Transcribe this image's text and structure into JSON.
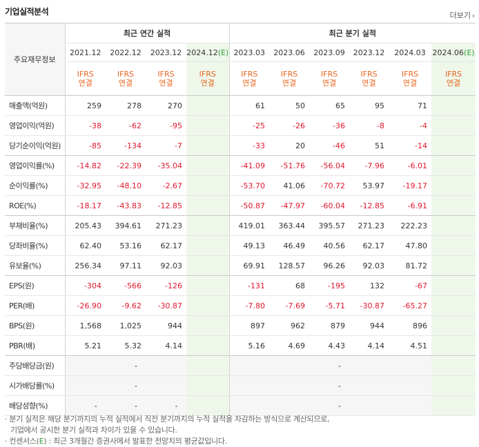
{
  "section_title": "기업실적분석",
  "more_label": "더보기",
  "header": {
    "corner_label": "주요재무정보",
    "annual_label": "최근 연간 실적",
    "quarter_label": "최근 분기 실적",
    "annual_periods": [
      "2021.12",
      "2022.12",
      "2023.12",
      "2024.12"
    ],
    "annual_est_suffix": "(E)",
    "quarter_periods": [
      "2023.03",
      "2023.06",
      "2023.09",
      "2023.12",
      "2024.03",
      "2024.06"
    ],
    "quarter_est_suffix": "(E)",
    "basis_top": "IFRS",
    "basis_bottom": "연결"
  },
  "rows": [
    {
      "label": "매출액(억원)",
      "annual": [
        "259",
        "278",
        "270",
        ""
      ],
      "quarter": [
        "61",
        "50",
        "65",
        "95",
        "71",
        ""
      ]
    },
    {
      "label": "영업이익(억원)",
      "annual": [
        "-38",
        "-62",
        "-95",
        ""
      ],
      "quarter": [
        "-25",
        "-26",
        "-36",
        "-8",
        "-4",
        ""
      ]
    },
    {
      "label": "당기순이익(억원)",
      "annual": [
        "-85",
        "-134",
        "-7",
        ""
      ],
      "quarter": [
        "-33",
        "20",
        "-46",
        "51",
        "-14",
        ""
      ]
    },
    {
      "label": "영업이익률(%)",
      "annual": [
        "-14.82",
        "-22.39",
        "-35.04",
        ""
      ],
      "quarter": [
        "-41.09",
        "-51.76",
        "-56.04",
        "-7.96",
        "-6.01",
        ""
      ]
    },
    {
      "label": "순이익률(%)",
      "annual": [
        "-32.95",
        "-48.10",
        "-2.67",
        ""
      ],
      "quarter": [
        "-53.70",
        "41.06",
        "-70.72",
        "53.97",
        "-19.17",
        ""
      ]
    },
    {
      "label": "ROE(%)",
      "annual": [
        "-18.17",
        "-43.83",
        "-12.85",
        ""
      ],
      "quarter": [
        "-50.87",
        "-47.97",
        "-60.04",
        "-12.85",
        "-6.91",
        ""
      ]
    },
    {
      "label": "부채비율(%)",
      "annual": [
        "205.43",
        "394.61",
        "271.23",
        ""
      ],
      "quarter": [
        "419.01",
        "363.44",
        "395.57",
        "271.23",
        "222.23",
        ""
      ]
    },
    {
      "label": "당좌비율(%)",
      "annual": [
        "62.40",
        "53.16",
        "62.17",
        ""
      ],
      "quarter": [
        "49.13",
        "46.49",
        "40.56",
        "62.17",
        "47.80",
        ""
      ]
    },
    {
      "label": "유보율(%)",
      "annual": [
        "256.34",
        "97.11",
        "92.03",
        ""
      ],
      "quarter": [
        "69.91",
        "128.57",
        "96.26",
        "92.03",
        "81.72",
        ""
      ]
    },
    {
      "label": "EPS(원)",
      "annual": [
        "-304",
        "-566",
        "-126",
        ""
      ],
      "quarter": [
        "-131",
        "68",
        "-195",
        "132",
        "-67",
        ""
      ]
    },
    {
      "label": "PER(배)",
      "annual": [
        "-26.90",
        "-9.62",
        "-30.87",
        ""
      ],
      "quarter": [
        "-7.80",
        "-7.69",
        "-5.71",
        "-30.87",
        "-65.27",
        ""
      ]
    },
    {
      "label": "BPS(원)",
      "annual": [
        "1,568",
        "1,025",
        "944",
        ""
      ],
      "quarter": [
        "897",
        "962",
        "879",
        "944",
        "896",
        ""
      ]
    },
    {
      "label": "PBR(배)",
      "annual": [
        "5.21",
        "5.32",
        "4.14",
        ""
      ],
      "quarter": [
        "5.16",
        "4.69",
        "4.43",
        "4.14",
        "4.51",
        ""
      ]
    },
    {
      "label": "주당배당금(원)",
      "annual": [
        "",
        "-",
        "",
        ""
      ],
      "quarter": [
        "",
        "",
        "-",
        "",
        "",
        ""
      ]
    },
    {
      "label": "시가배당률(%)",
      "annual": [
        "",
        "-",
        "",
        ""
      ],
      "quarter": [
        "",
        "",
        "-",
        "",
        "",
        ""
      ]
    },
    {
      "label": "배당성향(%)",
      "annual": [
        "-",
        "-",
        "-",
        ""
      ],
      "quarter": [
        "",
        "",
        "-",
        "",
        "",
        ""
      ]
    }
  ],
  "notes": {
    "line1": "· 분기 실적은 해당 분기까지의 누적 실적에서 직전 분기까지의 누적 실적을 차감하는 방식으로 계산되므로,",
    "line2": "기업에서 공시한 분기 실적과 차이가 있을 수 있습니다.",
    "line3_prefix": "· 컨센서스(",
    "line3_e": "E",
    "line3_suffix": ") : 최근 3개월간 증권사에서 발표한 전망치의 평균값입니다."
  },
  "colors": {
    "negative": "#e0172b",
    "ifrs": "#e8661f",
    "estimate_bg": "#eef7ea",
    "estimate_e": "#2c9d3b",
    "gray_bg": "#f6f6f6"
  }
}
